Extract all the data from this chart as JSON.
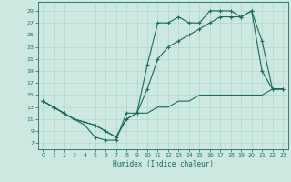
{
  "xlabel": "Humidex (Indice chaleur)",
  "bg_color": "#cce8e0",
  "line_color": "#1a6b5a",
  "grid_color": "#b0d8cc",
  "xlim": [
    -0.5,
    23.5
  ],
  "ylim": [
    6,
    30.5
  ],
  "yticks": [
    7,
    9,
    11,
    13,
    15,
    17,
    19,
    21,
    23,
    25,
    27,
    29
  ],
  "xticks": [
    0,
    1,
    2,
    3,
    4,
    5,
    6,
    7,
    8,
    9,
    10,
    11,
    12,
    13,
    14,
    15,
    16,
    17,
    18,
    19,
    20,
    21,
    22,
    23
  ],
  "curve1_x": [
    0,
    1,
    2,
    3,
    4,
    5,
    6,
    7,
    8,
    9,
    10,
    11,
    12,
    13,
    14,
    15,
    16,
    17,
    18,
    19,
    20,
    21,
    22,
    23
  ],
  "curve1_y": [
    14,
    13,
    12,
    11,
    10,
    8,
    7.5,
    7.5,
    12,
    12,
    20,
    27,
    27,
    28,
    27,
    27,
    29,
    29,
    29,
    28,
    29,
    19,
    16,
    16
  ],
  "curve2_x": [
    0,
    1,
    2,
    3,
    4,
    5,
    6,
    7,
    8,
    9,
    10,
    11,
    12,
    13,
    14,
    15,
    16,
    17,
    18,
    19,
    20,
    21,
    22,
    23
  ],
  "curve2_y": [
    14,
    13,
    12,
    11,
    10.5,
    10,
    9,
    8,
    11,
    12,
    16,
    21,
    23,
    24,
    25,
    26,
    27,
    28,
    28,
    28,
    29,
    24,
    16,
    16
  ],
  "curve3_x": [
    0,
    1,
    2,
    3,
    4,
    5,
    6,
    7,
    8,
    9,
    10,
    11,
    12,
    13,
    14,
    15,
    16,
    17,
    18,
    19,
    20,
    21,
    22,
    23
  ],
  "curve3_y": [
    14,
    13,
    12,
    11,
    10.5,
    10,
    9,
    8,
    11,
    12,
    12,
    13,
    13,
    14,
    14,
    15,
    15,
    15,
    15,
    15,
    15,
    15,
    16,
    16
  ]
}
